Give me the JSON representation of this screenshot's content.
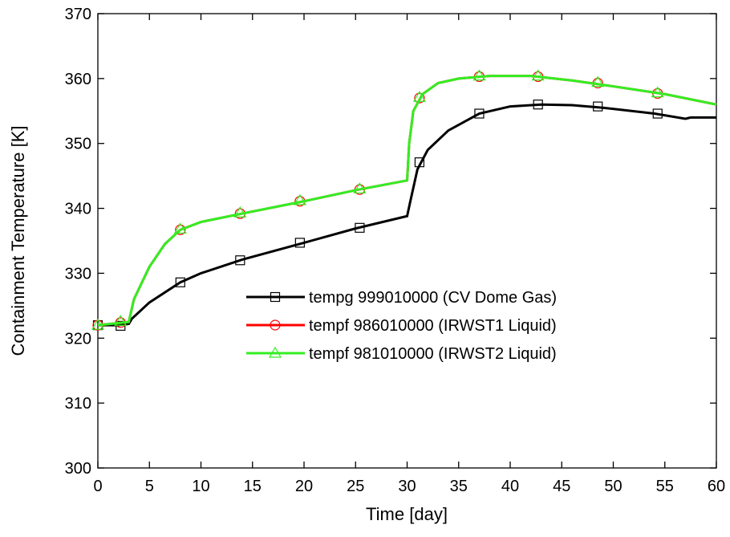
{
  "chart_data": {
    "type": "line",
    "xlabel": "Time [day]",
    "ylabel": "Containment Temperature [K]",
    "xlim": [
      0,
      60
    ],
    "ylim": [
      300,
      370
    ],
    "xticks": [
      0,
      5,
      10,
      15,
      20,
      25,
      30,
      35,
      40,
      45,
      50,
      55,
      60
    ],
    "yticks": [
      300,
      310,
      320,
      330,
      340,
      350,
      360,
      370
    ],
    "series": [
      {
        "name": "tempg 999010000 (CV Dome Gas)",
        "color": "#000000",
        "marker": "square",
        "x": [
          0,
          2,
          3,
          3.3,
          5,
          8,
          10,
          14,
          20,
          25,
          30,
          30.3,
          31,
          32,
          34,
          37,
          40,
          43,
          46,
          49,
          54,
          57,
          57.5,
          60
        ],
        "values": [
          322,
          322,
          322.2,
          323,
          325.5,
          328.6,
          330,
          332.1,
          334.7,
          336.9,
          338.8,
          341,
          346,
          349,
          352,
          354.6,
          355.7,
          356,
          355.9,
          355.5,
          354.6,
          353.8,
          354,
          354
        ],
        "markers": {
          "x": [
            0,
            2.2,
            8,
            13.8,
            19.6,
            25.4,
            31.2,
            37,
            42.7,
            48.5,
            54.3
          ],
          "values": [
            322,
            321.9,
            328.6,
            332,
            334.7,
            337,
            347.1,
            354.6,
            356,
            355.7,
            354.6
          ]
        }
      },
      {
        "name": "tempf 986010000 (IRWST1 Liquid)",
        "color": "#ff0000",
        "marker": "circle",
        "x": [
          0,
          3,
          3.5,
          5,
          6.5,
          8,
          10,
          14,
          20,
          25,
          30,
          30.2,
          30.6,
          31.5,
          33,
          35,
          38,
          42,
          46,
          50,
          55,
          60
        ],
        "values": [
          322,
          322.5,
          326,
          331,
          334.5,
          336.7,
          337.9,
          339.2,
          341.1,
          342.8,
          344.3,
          350,
          355,
          357.6,
          359.3,
          360,
          360.4,
          360.4,
          359.7,
          358.8,
          357.6,
          356
        ],
        "markers": {
          "x": [
            0,
            2.2,
            8,
            13.8,
            19.6,
            25.4,
            31.2,
            37,
            42.7,
            48.5,
            54.3
          ],
          "values": [
            322,
            322.4,
            336.7,
            339.2,
            341.1,
            342.9,
            357,
            360.3,
            360.3,
            359.3,
            357.7
          ]
        }
      },
      {
        "name": "tempf 981010000 (IRWST2 Liquid)",
        "color": "#33ee22",
        "marker": "triangle",
        "x": [
          0,
          3,
          3.5,
          5,
          6.5,
          8,
          10,
          14,
          20,
          25,
          30,
          30.2,
          30.6,
          31.5,
          33,
          35,
          38,
          42,
          46,
          50,
          55,
          60
        ],
        "values": [
          322,
          322.5,
          326,
          331,
          334.5,
          336.7,
          337.9,
          339.2,
          341.1,
          342.8,
          344.3,
          350,
          355,
          357.6,
          359.3,
          360,
          360.4,
          360.4,
          359.7,
          358.8,
          357.6,
          356
        ],
        "markers": {
          "x": [
            0,
            2.2,
            8,
            13.8,
            19.6,
            25.4,
            31.2,
            37,
            42.7,
            48.5,
            54.3
          ],
          "values": [
            322,
            322.6,
            336.8,
            339.3,
            341.2,
            343,
            357.1,
            360.4,
            360.4,
            359.4,
            357.8
          ]
        }
      }
    ]
  }
}
